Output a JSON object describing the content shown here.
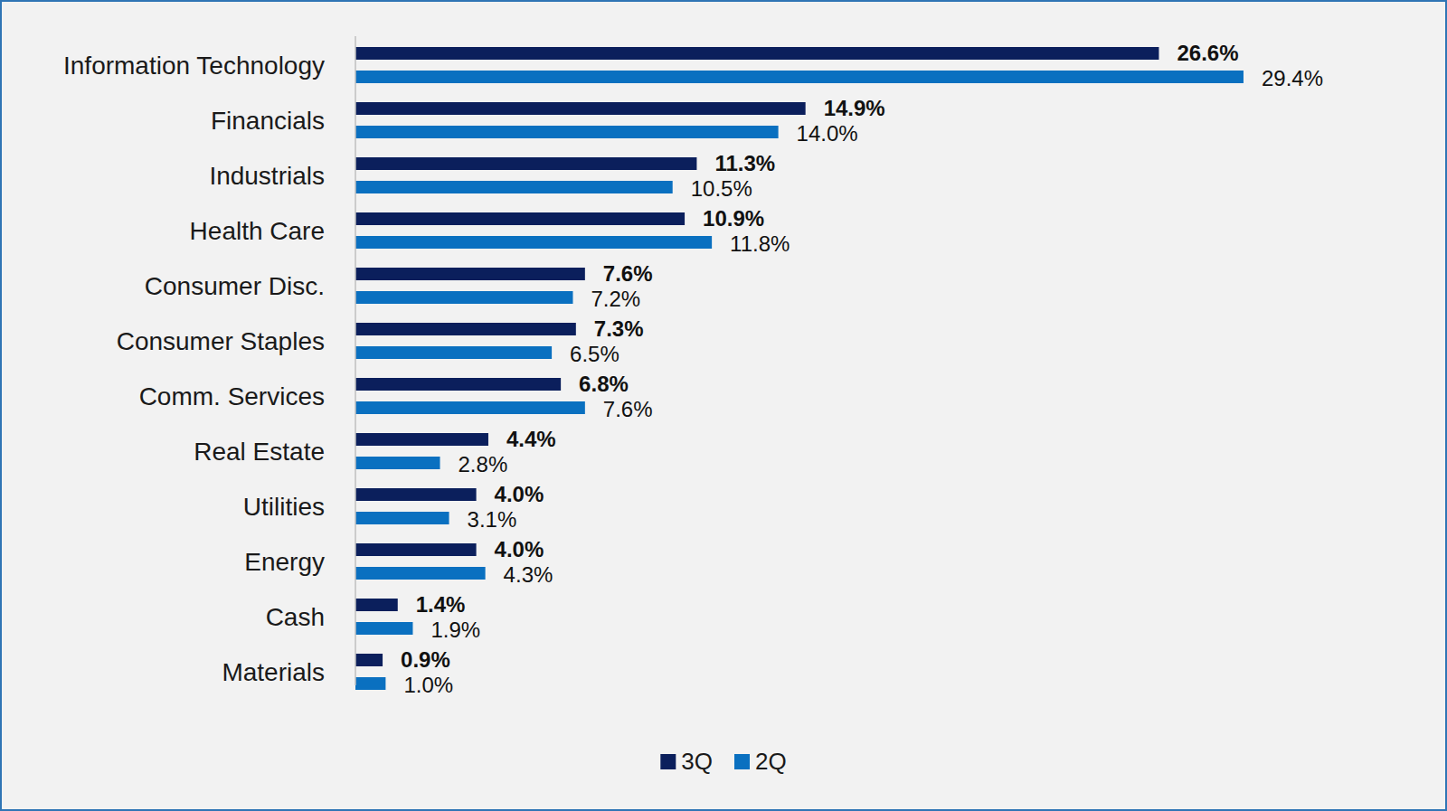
{
  "chart_data": {
    "type": "bar",
    "orientation": "horizontal",
    "data_labels": true,
    "tick_labels": "y",
    "grid": false,
    "legend": "bottom",
    "xlim": [
      0,
      35
    ],
    "categories": [
      "Information Technology",
      "Financials",
      "Industrials",
      "Health Care",
      "Consumer Disc.",
      "Consumer Staples",
      "Comm. Services",
      "Real Estate",
      "Utilities",
      "Energy",
      "Cash",
      "Materials"
    ],
    "series": [
      {
        "name": "3Q",
        "color": "#0B1F5C",
        "values": [
          26.6,
          14.9,
          11.3,
          10.9,
          7.6,
          7.3,
          6.8,
          4.4,
          4.0,
          4.0,
          1.4,
          0.9
        ],
        "value_labels": [
          "26.6%",
          "14.9%",
          "11.3%",
          "10.9%",
          "7.6%",
          "7.3%",
          "6.8%",
          "4.4%",
          "4.0%",
          "4.0%",
          "1.4%",
          "0.9%"
        ]
      },
      {
        "name": "2Q",
        "color": "#0A70C0",
        "values": [
          29.4,
          14.0,
          10.5,
          11.8,
          7.2,
          6.5,
          7.6,
          2.8,
          3.1,
          4.3,
          1.9,
          1.0
        ],
        "value_labels": [
          "29.4%",
          "14.0%",
          "10.5%",
          "11.8%",
          "7.2%",
          "6.5%",
          "7.6%",
          "2.8%",
          "3.1%",
          "4.3%",
          "1.9%",
          "1.0%"
        ]
      }
    ]
  }
}
